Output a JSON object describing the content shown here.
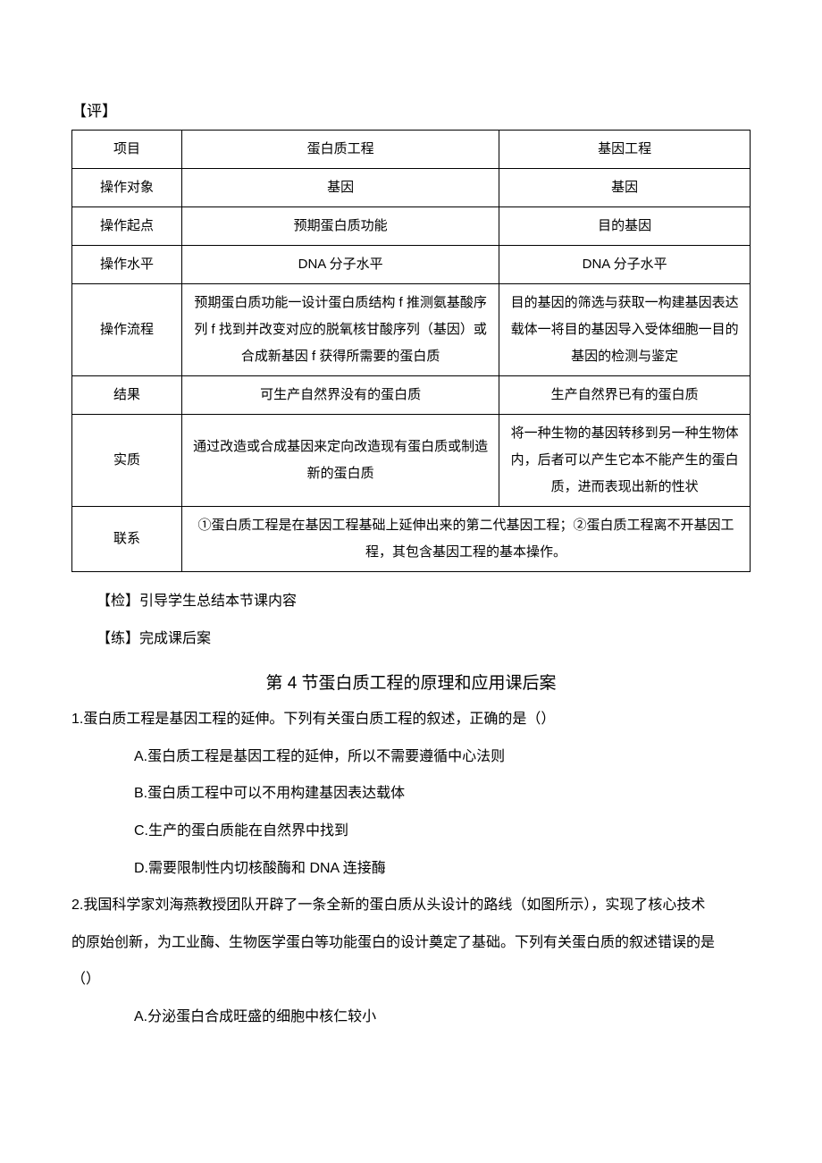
{
  "sectionLabels": {
    "eval": "【评】",
    "check": "【检】引导学生总结本节课内容",
    "practice": "【练】完成课后案"
  },
  "table": {
    "columns": [
      "项目",
      "蛋白质工程",
      "基因工程"
    ],
    "rows": [
      [
        "操作对象",
        "基因",
        "基因"
      ],
      [
        "操作起点",
        "预期蛋白质功能",
        "目的基因"
      ],
      [
        "操作水平",
        "DNA 分子水平",
        "DNA 分子水平"
      ],
      [
        "操作流程",
        "预期蛋白质功能一设计蛋白质结构 f 推测氨基酸序列 f 找到并改变对应的脱氧核甘酸序列（基因）或合成新基因 f 获得所需要的蛋白质",
        "目的基因的筛选与获取一构建基因表达载体一将目的基因导入受体细胞一目的基因的检测与鉴定"
      ],
      [
        "结果",
        "可生产自然界没有的蛋白质",
        "生产自然界已有的蛋白质"
      ],
      [
        "实质",
        "通过改造或合成基因来定向改造现有蛋白质或制造新的蛋白质",
        "将一种生物的基因转移到另一种生物体内，后者可以产生它本不能产生的蛋白质，进而表现出新的性状"
      ]
    ],
    "mergedRow": {
      "label": "联系",
      "content": "①蛋白质工程是在基因工程基础上延伸出来的第二代基因工程；②蛋白质工程离不开基因工程，其包含基因工程的基本操作。"
    }
  },
  "heading": "第 4 节蛋白质工程的原理和应用课后案",
  "q1": {
    "stem": "1.蛋白质工程是基因工程的延伸。下列有关蛋白质工程的叙述，正确的是（）",
    "A": "A.蛋白质工程是基因工程的延伸，所以不需要遵循中心法则",
    "B": "B.蛋白质工程中可以不用构建基因表达载体",
    "C": "C.生产的蛋白质能在自然界中找到",
    "D": "D.需要限制性内切核酸酶和 DNA 连接酶"
  },
  "q2": {
    "stem1": "2.我国科学家刘海燕教授团队开辟了一条全新的蛋白质从头设计的路线（如图所示），实现了核心技术",
    "stem2": "的原始创新，为工业酶、生物医学蛋白等功能蛋白的设计奠定了基础。下列有关蛋白质的叙述错误的是",
    "stem3": "（）",
    "A": "A.分泌蛋白合成旺盛的细胞中核仁较小"
  }
}
